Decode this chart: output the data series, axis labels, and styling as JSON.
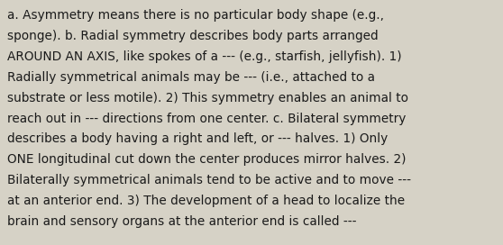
{
  "lines": [
    "a. Asymmetry means there is no particular body shape (e.g.,",
    "sponge). b. Radial symmetry describes body parts arranged",
    "AROUND AN AXIS, like spokes of a --- (e.g., starfish, jellyfish). 1)",
    "Radially symmetrical animals may be --- (i.e., attached to a",
    "substrate or less motile). 2) This symmetry enables an animal to",
    "reach out in --- directions from one center. c. Bilateral symmetry",
    "describes a body having a right and left, or --- halves. 1) Only",
    "ONE longitudinal cut down the center produces mirror halves. 2)",
    "Bilaterally symmetrical animals tend to be active and to move ---",
    "at an anterior end. 3) The development of a head to localize the",
    "brain and sensory organs at the anterior end is called ---"
  ],
  "bg_color": "#d6d2c6",
  "text_color": "#1a1a1a",
  "font_size": 9.8,
  "font_family": "DejaVu Sans",
  "fig_width": 5.58,
  "fig_height": 2.72,
  "dpi": 100
}
